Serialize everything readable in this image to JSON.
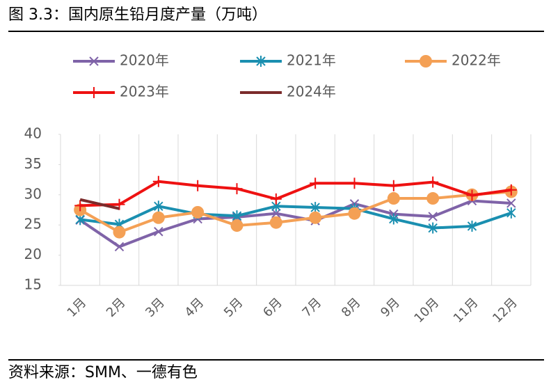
{
  "chart_data": {
    "type": "line",
    "title": "图 3.3：国内原生铅月度产量（万吨）",
    "source": "资料来源：SMM、一德有色",
    "categories": [
      "1月",
      "2月",
      "3月",
      "4月",
      "5月",
      "6月",
      "7月",
      "8月",
      "9月",
      "10月",
      "11月",
      "12月"
    ],
    "ylim": [
      15,
      40
    ],
    "yticks": [
      15,
      20,
      25,
      30,
      35,
      40
    ],
    "series": [
      {
        "name": "2020年",
        "color": "#7f63a8",
        "marker": "x",
        "values": [
          25.8,
          21.4,
          23.9,
          26.0,
          26.3,
          26.9,
          25.7,
          28.5,
          26.8,
          26.4,
          29.0,
          28.6
        ]
      },
      {
        "name": "2021年",
        "color": "#1a8fb0",
        "marker": "star",
        "values": [
          25.9,
          25.1,
          28.1,
          26.8,
          26.5,
          28.1,
          27.9,
          27.7,
          26.0,
          24.5,
          24.8,
          27.0
        ]
      },
      {
        "name": "2022年",
        "color": "#f4a055",
        "marker": "circle",
        "values": [
          27.5,
          23.8,
          26.2,
          27.1,
          24.9,
          25.4,
          26.2,
          26.9,
          29.4,
          29.4,
          30.0,
          30.5
        ]
      },
      {
        "name": "2023年",
        "color": "#ee1111",
        "marker": "plus",
        "values": [
          28.2,
          28.4,
          32.2,
          31.5,
          31.0,
          29.3,
          31.9,
          31.9,
          31.5,
          32.1,
          29.9,
          30.8
        ]
      },
      {
        "name": "2024年",
        "color": "#7b2b2b",
        "marker": "none",
        "values": [
          29.2,
          27.7,
          null,
          null,
          null,
          null,
          null,
          null,
          null,
          null,
          null,
          null
        ]
      }
    ]
  }
}
